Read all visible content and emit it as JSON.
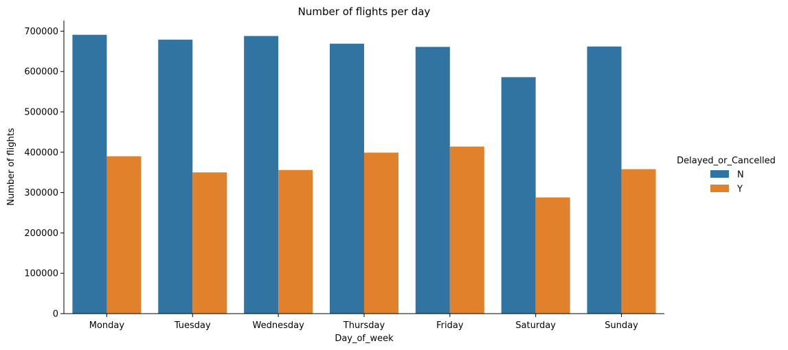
{
  "chart_data": {
    "type": "bar",
    "title": "Number of flights per day",
    "xlabel": "Day_of_week",
    "ylabel": "Number of flights",
    "categories": [
      "Monday",
      "Tuesday",
      "Wednesday",
      "Thursday",
      "Friday",
      "Saturday",
      "Sunday"
    ],
    "series": [
      {
        "name": "N",
        "color": "#3274a1",
        "values": [
          691000,
          679000,
          688000,
          669000,
          661000,
          586000,
          662000
        ]
      },
      {
        "name": "Y",
        "color": "#e1812c",
        "values": [
          390000,
          350000,
          356000,
          399000,
          414000,
          288000,
          358000
        ]
      }
    ],
    "ylim": [
      0,
      725000
    ],
    "yticks": [
      0,
      100000,
      200000,
      300000,
      400000,
      500000,
      600000,
      700000
    ],
    "ytick_labels": [
      "0",
      "100000",
      "200000",
      "300000",
      "400000",
      "500000",
      "600000",
      "700000"
    ],
    "legend": {
      "title": "Delayed_or_Cancelled",
      "placement": "right"
    },
    "grid": false
  }
}
